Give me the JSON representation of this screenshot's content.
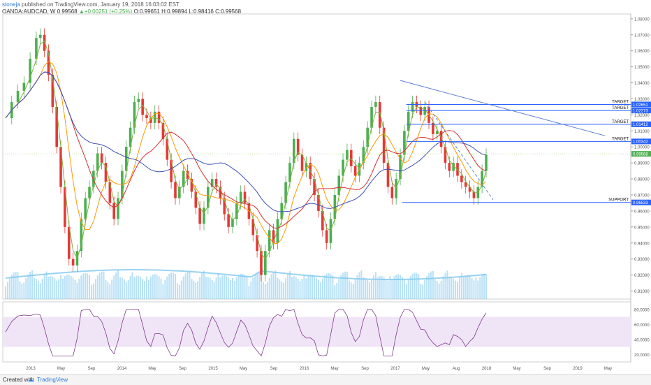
{
  "header": {
    "author": "stoneja",
    "published": "published on TradingView.com, January 19, 2018 16:03:02 EST",
    "symbol": "OANDA:AUDCAD, W",
    "last": "0.99568",
    "change": "+0.00251 (+0.25%)",
    "open": "O:0.99651",
    "high": "H:0.99894",
    "low": "L:0.98416",
    "close": "C:0.99568"
  },
  "footer": {
    "created_with": "Created with",
    "brand": "TradingView"
  },
  "colors": {
    "up": "#4caf50",
    "down": "#e53935",
    "ma_blue": "#3f51b5",
    "ma_red": "#d32f2f",
    "ma_orange": "#ff9800",
    "ma_green": "#7cb342",
    "level_line": "#2962ff",
    "trend_line": "#5b7fd6",
    "volume": "#7ec8f0",
    "rsi_band": "#f0e4f7",
    "rsi_line": "#7e3b8a"
  },
  "chart_data": {
    "type": "candlestick",
    "y_ticks": [
      "1.08000",
      "1.07000",
      "1.06000",
      "1.05000",
      "1.04000",
      "1.03000",
      "1.02000",
      "1.01000",
      "1.00000",
      "0.99000",
      "0.98000",
      "0.97000",
      "0.96000",
      "0.95000",
      "0.94000",
      "0.93000",
      "0.92000",
      "0.91000"
    ],
    "ylim": [
      0.905,
      1.083
    ],
    "x_ticks": [
      "2013",
      "May",
      "Sep",
      "2014",
      "May",
      "Sep",
      "2015",
      "May",
      "Sep",
      "2016",
      "May",
      "Sep",
      "2017",
      "May",
      "Aug",
      "2018",
      "May",
      "Sep",
      "2019",
      "May"
    ],
    "levels": [
      {
        "label": "TARGET",
        "value": "1.02651",
        "y": 1.02651
      },
      {
        "label": "TARGET",
        "value": "1.02273",
        "y": 1.02273
      },
      {
        "label": "TARGET",
        "value": "1.01412",
        "y": 1.01412
      },
      {
        "label": "TARGET",
        "value": "1.00342",
        "y": 1.00342
      },
      {
        "label": "SUPPORT",
        "value": "0.96533",
        "y": 0.96533
      }
    ],
    "last_price_label": "0.99568",
    "rsi_ticks": [
      "80.0000",
      "60.0000",
      "40.0000",
      "20.0000"
    ],
    "rsi_band": [
      30,
      70
    ],
    "price_path": [
      [
        0,
        1.018
      ],
      [
        3,
        1.028
      ],
      [
        6,
        1.035
      ],
      [
        9,
        1.04
      ],
      [
        12,
        1.055
      ],
      [
        15,
        1.068
      ],
      [
        17,
        1.07
      ],
      [
        19,
        1.06
      ],
      [
        21,
        1.045
      ],
      [
        23,
        1.025
      ],
      [
        25,
        1.0
      ],
      [
        27,
        0.975
      ],
      [
        29,
        0.95
      ],
      [
        31,
        0.93
      ],
      [
        33,
        0.926
      ],
      [
        35,
        0.935
      ],
      [
        37,
        0.955
      ],
      [
        39,
        0.968
      ],
      [
        41,
        0.975
      ],
      [
        43,
        0.985
      ],
      [
        45,
        0.996
      ],
      [
        47,
        0.99
      ],
      [
        49,
        0.978
      ],
      [
        51,
        0.965
      ],
      [
        53,
        0.955
      ],
      [
        55,
        0.968
      ],
      [
        57,
        0.985
      ],
      [
        59,
        1.0
      ],
      [
        61,
        1.012
      ],
      [
        63,
        1.028
      ],
      [
        65,
        1.03
      ],
      [
        67,
        1.02
      ],
      [
        69,
        1.018
      ],
      [
        71,
        1.015
      ],
      [
        73,
        1.022
      ],
      [
        75,
        1.015
      ],
      [
        77,
        1.005
      ],
      [
        79,
        0.992
      ],
      [
        81,
        0.978
      ],
      [
        83,
        0.968
      ],
      [
        85,
        0.975
      ],
      [
        87,
        0.985
      ],
      [
        89,
        0.98
      ],
      [
        91,
        0.972
      ],
      [
        93,
        0.962
      ],
      [
        95,
        0.952
      ],
      [
        97,
        0.962
      ],
      [
        99,
        0.975
      ],
      [
        101,
        0.98
      ],
      [
        103,
        0.975
      ],
      [
        105,
        0.968
      ],
      [
        107,
        0.958
      ],
      [
        109,
        0.95
      ],
      [
        111,
        0.955
      ],
      [
        113,
        0.965
      ],
      [
        115,
        0.972
      ],
      [
        117,
        0.965
      ],
      [
        119,
        0.955
      ],
      [
        121,
        0.945
      ],
      [
        123,
        0.935
      ],
      [
        125,
        0.92
      ],
      [
        127,
        0.935
      ],
      [
        129,
        0.948
      ],
      [
        131,
        0.94
      ],
      [
        133,
        0.955
      ],
      [
        135,
        0.965
      ],
      [
        137,
        0.978
      ],
      [
        139,
        0.99
      ],
      [
        141,
        1.005
      ],
      [
        143,
        0.995
      ],
      [
        145,
        0.985
      ],
      [
        147,
        0.99
      ],
      [
        149,
        0.98
      ],
      [
        151,
        0.97
      ],
      [
        153,
        0.96
      ],
      [
        155,
        0.948
      ],
      [
        157,
        0.94
      ],
      [
        159,
        0.955
      ],
      [
        161,
        0.97
      ],
      [
        163,
        0.982
      ],
      [
        165,
        0.992
      ],
      [
        167,
        0.998
      ],
      [
        169,
        0.988
      ],
      [
        171,
        0.982
      ],
      [
        173,
        0.99
      ],
      [
        175,
        1.0
      ],
      [
        177,
        1.012
      ],
      [
        179,
        1.025
      ],
      [
        181,
        1.028
      ],
      [
        183,
        1.012
      ],
      [
        185,
        0.99
      ],
      [
        187,
        0.975
      ],
      [
        189,
        0.968
      ],
      [
        191,
        0.98
      ],
      [
        193,
        0.995
      ],
      [
        195,
        1.01
      ],
      [
        197,
        1.022
      ],
      [
        199,
        1.028
      ],
      [
        201,
        1.025
      ],
      [
        203,
        1.02
      ],
      [
        205,
        1.025
      ],
      [
        207,
        1.015
      ],
      [
        209,
        1.008
      ],
      [
        211,
        1.01
      ],
      [
        213,
        1.0
      ],
      [
        215,
        0.99
      ],
      [
        217,
        0.985
      ],
      [
        219,
        0.99
      ],
      [
        221,
        0.982
      ],
      [
        223,
        0.978
      ],
      [
        225,
        0.975
      ],
      [
        227,
        0.972
      ],
      [
        229,
        0.968
      ],
      [
        231,
        0.975
      ],
      [
        233,
        0.985
      ],
      [
        235,
        0.995
      ]
    ],
    "x_domain": [
      0,
      235
    ]
  }
}
